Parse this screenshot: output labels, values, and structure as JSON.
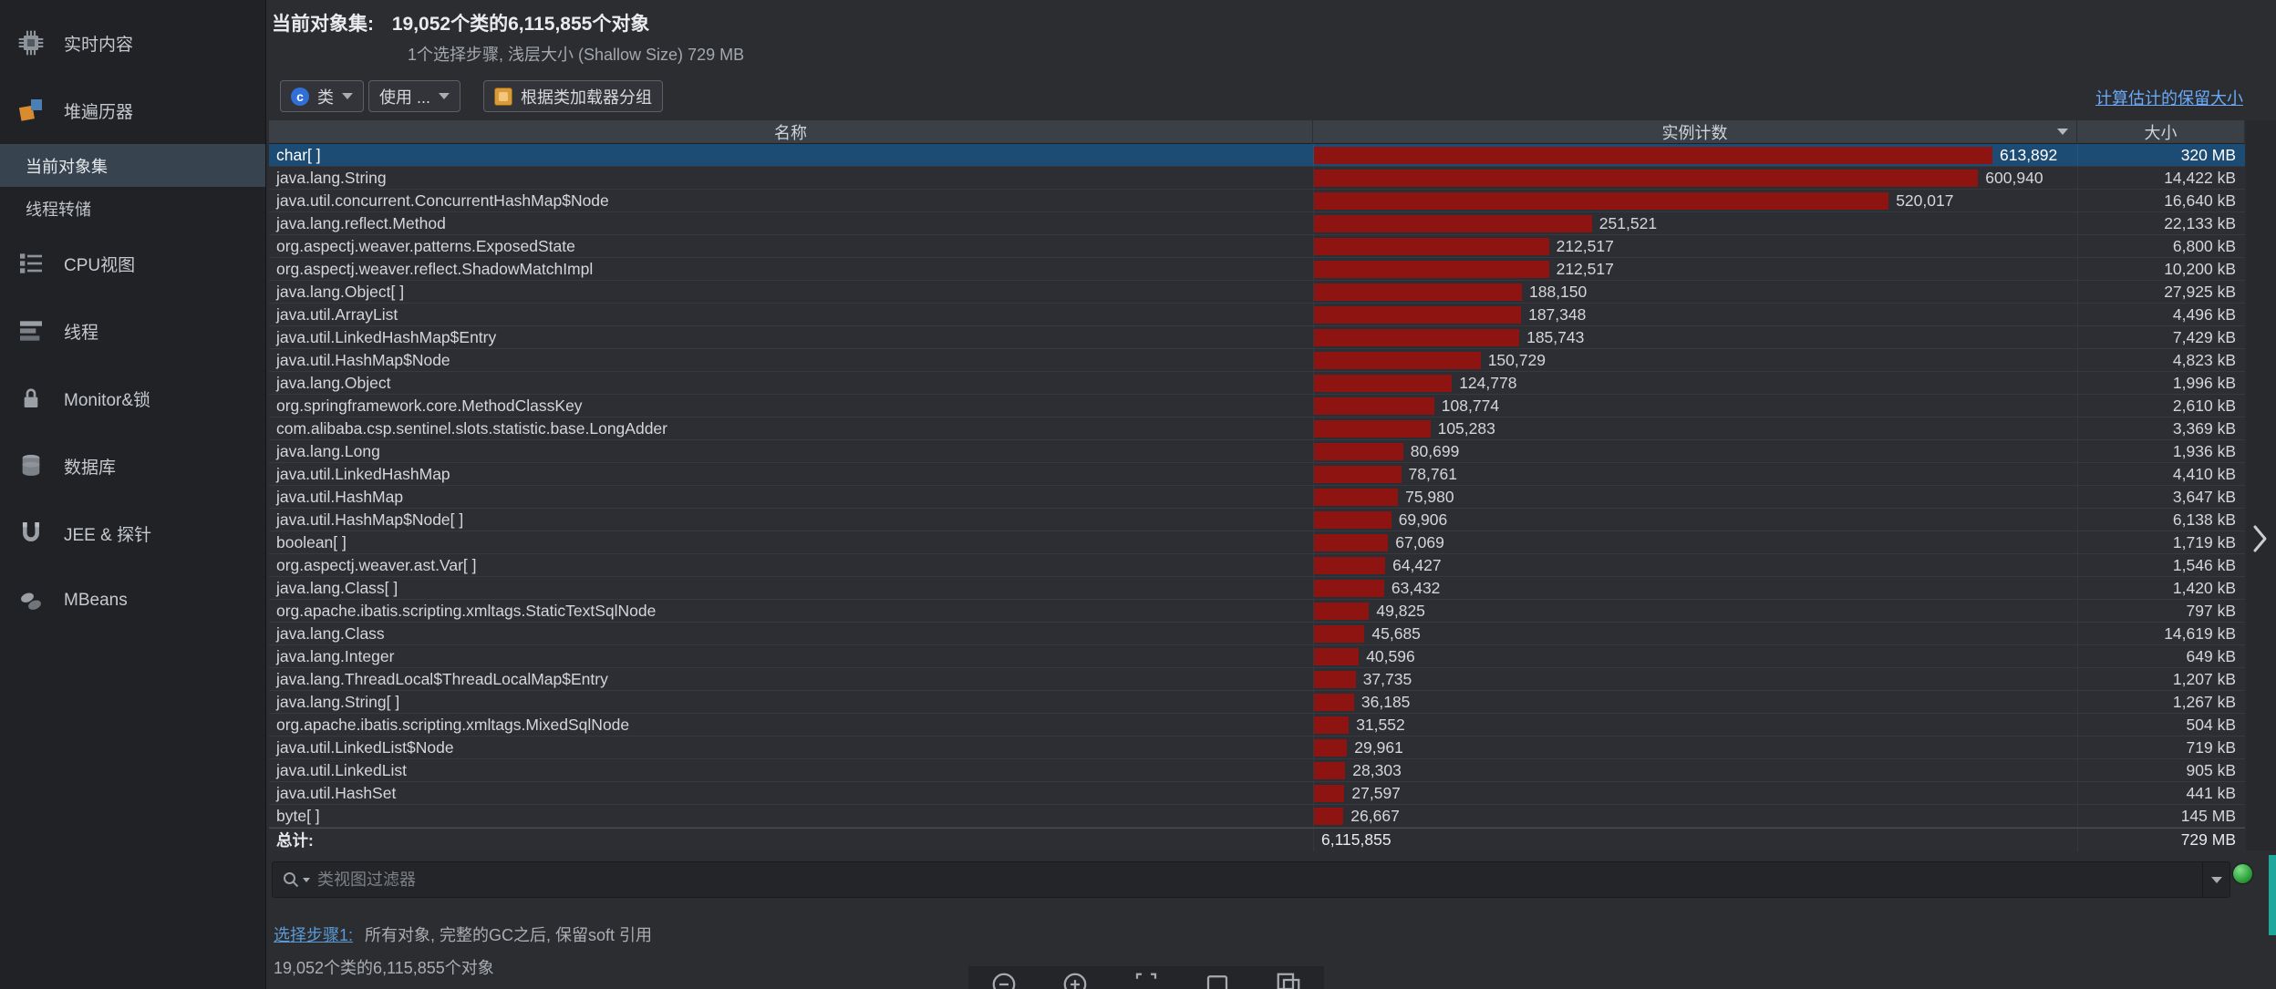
{
  "sidebar": {
    "items": [
      {
        "label": "实时内容",
        "icon": "memory-icon",
        "type": "main",
        "selected": false
      },
      {
        "label": "堆遍历器",
        "icon": "heap-icon",
        "type": "main",
        "selected": false
      },
      {
        "label": "当前对象集",
        "icon": "",
        "type": "sub",
        "selected": true
      },
      {
        "label": "线程转储",
        "icon": "",
        "type": "sub",
        "selected": false
      },
      {
        "label": "CPU视图",
        "icon": "cpu-icon",
        "type": "main",
        "selected": false
      },
      {
        "label": "线程",
        "icon": "threads-icon",
        "type": "main",
        "selected": false
      },
      {
        "label": "Monitor&锁",
        "icon": "lock-icon",
        "type": "main",
        "selected": false
      },
      {
        "label": "数据库",
        "icon": "database-icon",
        "type": "main",
        "selected": false
      },
      {
        "label": "JEE & 探针",
        "icon": "probe-icon",
        "type": "main",
        "selected": false
      },
      {
        "label": "MBeans",
        "icon": "mbeans-icon",
        "type": "main",
        "selected": false
      }
    ]
  },
  "header": {
    "title_label": "当前对象集:",
    "title_value": "19,052个类的6,115,855个对象",
    "subtitle": "1个选择步骤, 浅层大小 (Shallow Size)  729 MB"
  },
  "toolbar": {
    "class_selector_label": "类",
    "class_badge_letter": "c",
    "use_selector_label": "使用 ...",
    "group_by_classloader_label": "根据类加载器分组",
    "retained_size_link": "计算估计的保留大小"
  },
  "table": {
    "columns": [
      "名称",
      "实例计数",
      "大小"
    ],
    "max_count": 613892,
    "bar_color": "#8e1412",
    "selection_color": "#1c4b74",
    "rows": [
      {
        "name": "char[ ]",
        "count": "613,892",
        "count_val": 613892,
        "size": "320 MB",
        "selected": true
      },
      {
        "name": "java.lang.String",
        "count": "600,940",
        "count_val": 600940,
        "size": "14,422 kB",
        "selected": false
      },
      {
        "name": "java.util.concurrent.ConcurrentHashMap$Node",
        "count": "520,017",
        "count_val": 520017,
        "size": "16,640 kB",
        "selected": false
      },
      {
        "name": "java.lang.reflect.Method",
        "count": "251,521",
        "count_val": 251521,
        "size": "22,133 kB",
        "selected": false
      },
      {
        "name": "org.aspectj.weaver.patterns.ExposedState",
        "count": "212,517",
        "count_val": 212517,
        "size": "6,800 kB",
        "selected": false
      },
      {
        "name": "org.aspectj.weaver.reflect.ShadowMatchImpl",
        "count": "212,517",
        "count_val": 212517,
        "size": "10,200 kB",
        "selected": false
      },
      {
        "name": "java.lang.Object[ ]",
        "count": "188,150",
        "count_val": 188150,
        "size": "27,925 kB",
        "selected": false
      },
      {
        "name": "java.util.ArrayList",
        "count": "187,348",
        "count_val": 187348,
        "size": "4,496 kB",
        "selected": false
      },
      {
        "name": "java.util.LinkedHashMap$Entry",
        "count": "185,743",
        "count_val": 185743,
        "size": "7,429 kB",
        "selected": false
      },
      {
        "name": "java.util.HashMap$Node",
        "count": "150,729",
        "count_val": 150729,
        "size": "4,823 kB",
        "selected": false
      },
      {
        "name": "java.lang.Object",
        "count": "124,778",
        "count_val": 124778,
        "size": "1,996 kB",
        "selected": false
      },
      {
        "name": "org.springframework.core.MethodClassKey",
        "count": "108,774",
        "count_val": 108774,
        "size": "2,610 kB",
        "selected": false
      },
      {
        "name": "com.alibaba.csp.sentinel.slots.statistic.base.LongAdder",
        "count": "105,283",
        "count_val": 105283,
        "size": "3,369 kB",
        "selected": false
      },
      {
        "name": "java.lang.Long",
        "count": "80,699",
        "count_val": 80699,
        "size": "1,936 kB",
        "selected": false
      },
      {
        "name": "java.util.LinkedHashMap",
        "count": "78,761",
        "count_val": 78761,
        "size": "4,410 kB",
        "selected": false
      },
      {
        "name": "java.util.HashMap",
        "count": "75,980",
        "count_val": 75980,
        "size": "3,647 kB",
        "selected": false
      },
      {
        "name": "java.util.HashMap$Node[ ]",
        "count": "69,906",
        "count_val": 69906,
        "size": "6,138 kB",
        "selected": false
      },
      {
        "name": "boolean[ ]",
        "count": "67,069",
        "count_val": 67069,
        "size": "1,719 kB",
        "selected": false
      },
      {
        "name": "org.aspectj.weaver.ast.Var[ ]",
        "count": "64,427",
        "count_val": 64427,
        "size": "1,546 kB",
        "selected": false
      },
      {
        "name": "java.lang.Class[ ]",
        "count": "63,432",
        "count_val": 63432,
        "size": "1,420 kB",
        "selected": false
      },
      {
        "name": "org.apache.ibatis.scripting.xmltags.StaticTextSqlNode",
        "count": "49,825",
        "count_val": 49825,
        "size": "797 kB",
        "selected": false
      },
      {
        "name": "java.lang.Class",
        "count": "45,685",
        "count_val": 45685,
        "size": "14,619 kB",
        "selected": false
      },
      {
        "name": "java.lang.Integer",
        "count": "40,596",
        "count_val": 40596,
        "size": "649 kB",
        "selected": false
      },
      {
        "name": "java.lang.ThreadLocal$ThreadLocalMap$Entry",
        "count": "37,735",
        "count_val": 37735,
        "size": "1,207 kB",
        "selected": false
      },
      {
        "name": "java.lang.String[ ]",
        "count": "36,185",
        "count_val": 36185,
        "size": "1,267 kB",
        "selected": false
      },
      {
        "name": "org.apache.ibatis.scripting.xmltags.MixedSqlNode",
        "count": "31,552",
        "count_val": 31552,
        "size": "504 kB",
        "selected": false
      },
      {
        "name": "java.util.LinkedList$Node",
        "count": "29,961",
        "count_val": 29961,
        "size": "719 kB",
        "selected": false
      },
      {
        "name": "java.util.LinkedList",
        "count": "28,303",
        "count_val": 28303,
        "size": "905 kB",
        "selected": false
      },
      {
        "name": "java.util.HashSet",
        "count": "27,597",
        "count_val": 27597,
        "size": "441 kB",
        "selected": false
      },
      {
        "name": "byte[ ]",
        "count": "26,667",
        "count_val": 26667,
        "size": "145 MB",
        "selected": false
      }
    ],
    "total": {
      "label": "总计:",
      "count": "6,115,855",
      "size": "729 MB"
    }
  },
  "filter": {
    "placeholder": "类视图过滤器"
  },
  "selection_info": {
    "step_link": "选择步骤1:",
    "step_text": "所有对象, 完整的GC之后, 保留soft 引用",
    "summary": "19,052个类的6,115,855个对象"
  },
  "bottom_toolbar": {
    "icons": [
      "zoom-out-icon",
      "zoom-in-icon",
      "fit-content-icon",
      "view-icon",
      "copy-view-icon"
    ]
  }
}
